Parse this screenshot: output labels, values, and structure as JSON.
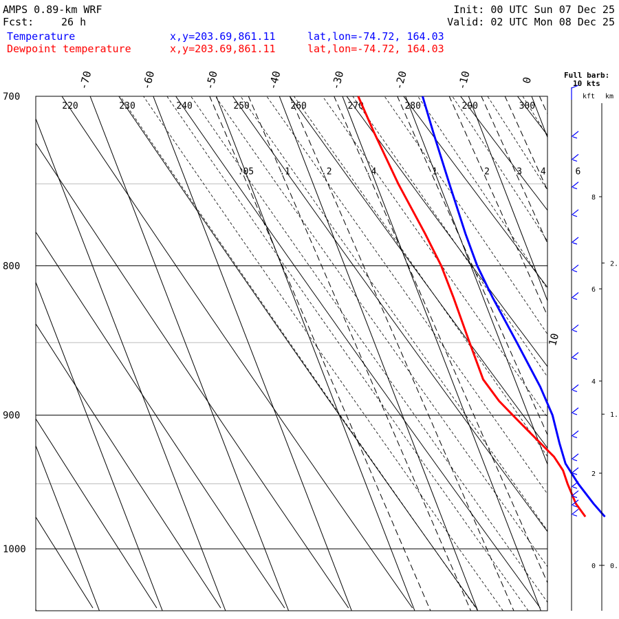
{
  "header": {
    "model": "AMPS 0.89-km WRF",
    "fcst_label": "Fcst:",
    "fcst_hours": "26 h",
    "init": "Init: 00 UTC Sun 07 Dec 25",
    "valid": "Valid: 02 UTC Mon 08 Dec 25",
    "temp_label": "Temperature",
    "dew_label": "Dewpoint temperature",
    "xy": "x,y=203.69,861.11",
    "latlon": "lat,lon=-74.72, 164.03"
  },
  "barb_legend": {
    "line1": "Full barb:",
    "line2": "10 kts",
    "kft": "kft",
    "km": "km"
  },
  "chart_data": {
    "type": "line",
    "pressure_levels": [
      "700",
      "800",
      "900",
      "1000"
    ],
    "isotherm_labels": [
      "-70",
      "-60",
      "-50",
      "-40",
      "-30",
      "-20",
      "-10",
      "0",
      "10"
    ],
    "theta_labels": [
      "220",
      "230",
      "240",
      "250",
      "260",
      "270",
      "280",
      "290",
      "300"
    ],
    "mixing_ratio_labels": [
      ".05",
      ".1",
      ".2",
      ".4",
      "1",
      "2",
      "3",
      "4",
      "6"
    ],
    "kft_ticks": [
      "0",
      "2",
      "4",
      "6",
      "8"
    ],
    "km_ticks": [
      "0.",
      "1.",
      "2."
    ],
    "series": [
      {
        "name": "Temperature",
        "color": "#0000ff",
        "points": [
          [
            700,
            -17.3
          ],
          [
            720,
            -17.8
          ],
          [
            750,
            -18.4
          ],
          [
            780,
            -18.9
          ],
          [
            800,
            -19.0
          ],
          [
            820,
            -18.5
          ],
          [
            850,
            -17.4
          ],
          [
            880,
            -16.4
          ],
          [
            900,
            -16.2
          ],
          [
            920,
            -16.8
          ],
          [
            935,
            -17.1
          ],
          [
            950,
            -16.3
          ],
          [
            965,
            -15.1
          ],
          [
            975,
            -14.1
          ]
        ]
      },
      {
        "name": "Dewpoint temperature",
        "color": "#ff0000",
        "points": [
          [
            700,
            -27.5
          ],
          [
            720,
            -27.2
          ],
          [
            750,
            -26.5
          ],
          [
            780,
            -25.3
          ],
          [
            800,
            -24.7
          ],
          [
            820,
            -24.7
          ],
          [
            850,
            -24.9
          ],
          [
            875,
            -25.0
          ],
          [
            890,
            -23.8
          ],
          [
            900,
            -22.5
          ],
          [
            915,
            -20.5
          ],
          [
            930,
            -18.5
          ],
          [
            940,
            -17.9
          ],
          [
            950,
            -18.0
          ],
          [
            965,
            -17.9
          ],
          [
            975,
            -17.2
          ]
        ]
      }
    ],
    "wind_barbs_kft": [
      9.3,
      8.8,
      8.2,
      7.6,
      7.0,
      6.4,
      5.8,
      5.1,
      4.5,
      3.8,
      3.3,
      2.8,
      2.3,
      2.0,
      1.7,
      1.5,
      1.3,
      1.1
    ]
  }
}
